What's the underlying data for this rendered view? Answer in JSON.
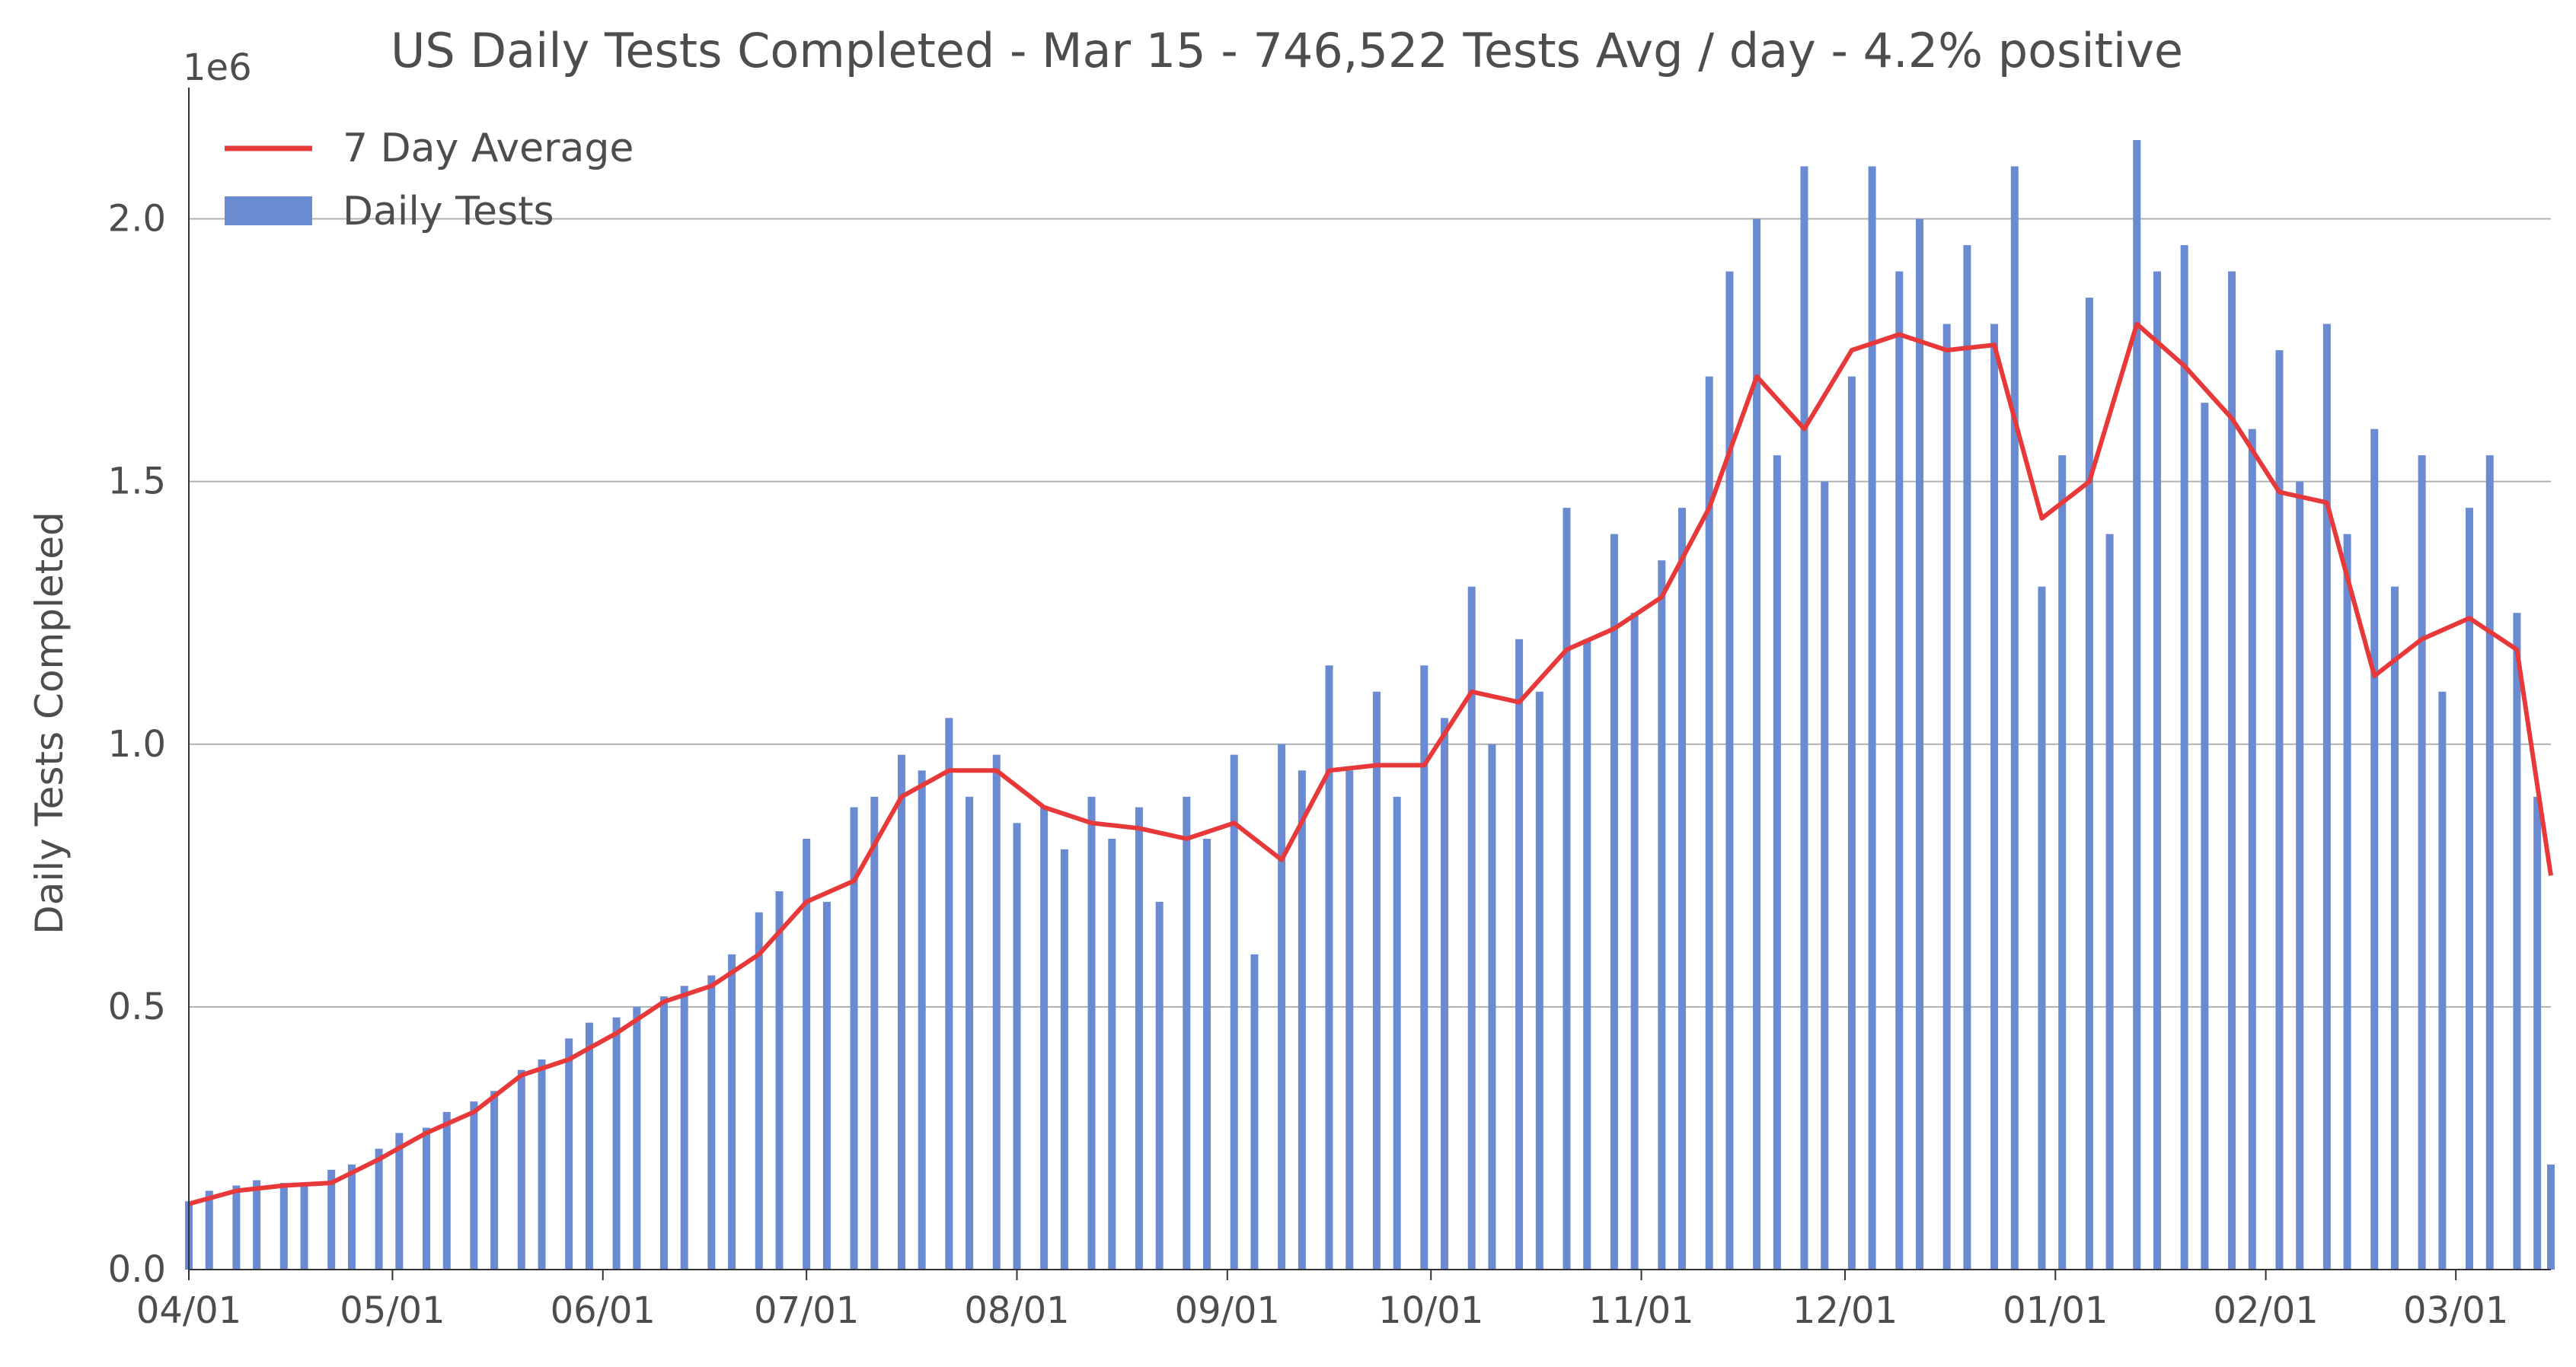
{
  "chart_data": {
    "type": "bar",
    "title": "US Daily Tests Completed - Mar 15 - 746,522 Tests Avg / day - 4.2% positive",
    "ylabel": "Daily Tests Completed",
    "xlabel": "",
    "offset_label": "1e6",
    "x_start": "2020-04-01",
    "x_end": "2021-03-15",
    "ylim": [
      0,
      2250000
    ],
    "yticks": [
      0,
      500000,
      1000000,
      1500000,
      2000000
    ],
    "ytick_labels": [
      "0.0",
      "0.5",
      "1.0",
      "1.5",
      "2.0"
    ],
    "xticks": [
      "2020-04-01",
      "2020-05-01",
      "2020-06-01",
      "2020-07-01",
      "2020-08-01",
      "2020-09-01",
      "2020-10-01",
      "2020-11-01",
      "2020-12-01",
      "2021-01-01",
      "2021-02-01",
      "2021-03-01"
    ],
    "xtick_labels": [
      "04/01",
      "05/01",
      "06/01",
      "07/01",
      "08/01",
      "09/01",
      "10/01",
      "11/01",
      "12/01",
      "01/01",
      "02/01",
      "03/01"
    ],
    "grid": "horizontal",
    "legend_position": "top-left",
    "series": [
      {
        "name": "Daily Tests",
        "kind": "bar",
        "color": "#6a8bd1",
        "dates": [
          "2020-04-01",
          "2020-04-04",
          "2020-04-08",
          "2020-04-11",
          "2020-04-15",
          "2020-04-18",
          "2020-04-22",
          "2020-04-25",
          "2020-04-29",
          "2020-05-02",
          "2020-05-06",
          "2020-05-09",
          "2020-05-13",
          "2020-05-16",
          "2020-05-20",
          "2020-05-23",
          "2020-05-27",
          "2020-05-30",
          "2020-06-03",
          "2020-06-06",
          "2020-06-10",
          "2020-06-13",
          "2020-06-17",
          "2020-06-20",
          "2020-06-24",
          "2020-06-27",
          "2020-07-01",
          "2020-07-04",
          "2020-07-08",
          "2020-07-11",
          "2020-07-15",
          "2020-07-18",
          "2020-07-22",
          "2020-07-25",
          "2020-07-29",
          "2020-08-01",
          "2020-08-05",
          "2020-08-08",
          "2020-08-12",
          "2020-08-15",
          "2020-08-19",
          "2020-08-22",
          "2020-08-26",
          "2020-08-29",
          "2020-09-02",
          "2020-09-05",
          "2020-09-09",
          "2020-09-12",
          "2020-09-16",
          "2020-09-19",
          "2020-09-23",
          "2020-09-26",
          "2020-09-30",
          "2020-10-03",
          "2020-10-07",
          "2020-10-10",
          "2020-10-14",
          "2020-10-17",
          "2020-10-21",
          "2020-10-24",
          "2020-10-28",
          "2020-10-31",
          "2020-11-04",
          "2020-11-07",
          "2020-11-11",
          "2020-11-14",
          "2020-11-18",
          "2020-11-21",
          "2020-11-25",
          "2020-11-28",
          "2020-12-02",
          "2020-12-05",
          "2020-12-09",
          "2020-12-12",
          "2020-12-16",
          "2020-12-19",
          "2020-12-23",
          "2020-12-26",
          "2020-12-30",
          "2021-01-02",
          "2021-01-06",
          "2021-01-09",
          "2021-01-13",
          "2021-01-16",
          "2021-01-20",
          "2021-01-23",
          "2021-01-27",
          "2021-01-30",
          "2021-02-03",
          "2021-02-06",
          "2021-02-10",
          "2021-02-13",
          "2021-02-17",
          "2021-02-20",
          "2021-02-24",
          "2021-02-27",
          "2021-03-03",
          "2021-03-06",
          "2021-03-10",
          "2021-03-13",
          "2021-03-15"
        ],
        "values": [
          130000,
          150000,
          160000,
          170000,
          165000,
          160000,
          190000,
          200000,
          230000,
          260000,
          270000,
          300000,
          320000,
          340000,
          380000,
          400000,
          440000,
          470000,
          480000,
          500000,
          520000,
          540000,
          560000,
          600000,
          680000,
          720000,
          820000,
          700000,
          880000,
          900000,
          980000,
          950000,
          1050000,
          900000,
          980000,
          850000,
          880000,
          800000,
          900000,
          820000,
          880000,
          700000,
          900000,
          820000,
          980000,
          600000,
          1000000,
          950000,
          1150000,
          950000,
          1100000,
          900000,
          1150000,
          1050000,
          1300000,
          1000000,
          1200000,
          1100000,
          1450000,
          1200000,
          1400000,
          1250000,
          1350000,
          1450000,
          1700000,
          1900000,
          2000000,
          1550000,
          2100000,
          1500000,
          1700000,
          2100000,
          1900000,
          2000000,
          1800000,
          1950000,
          1800000,
          2100000,
          1300000,
          1550000,
          1850000,
          1400000,
          2150000,
          1900000,
          1950000,
          1650000,
          1900000,
          1600000,
          1750000,
          1500000,
          1800000,
          1400000,
          1600000,
          1300000,
          1550000,
          1100000,
          1450000,
          1550000,
          1250000,
          900000,
          200000
        ]
      },
      {
        "name": "7 Day Average",
        "kind": "line",
        "color": "#e8393a",
        "dates": [
          "2020-04-01",
          "2020-04-08",
          "2020-04-15",
          "2020-04-22",
          "2020-04-29",
          "2020-05-06",
          "2020-05-13",
          "2020-05-20",
          "2020-05-27",
          "2020-06-03",
          "2020-06-10",
          "2020-06-17",
          "2020-06-24",
          "2020-07-01",
          "2020-07-08",
          "2020-07-15",
          "2020-07-22",
          "2020-07-29",
          "2020-08-05",
          "2020-08-12",
          "2020-08-19",
          "2020-08-26",
          "2020-09-02",
          "2020-09-09",
          "2020-09-16",
          "2020-09-23",
          "2020-09-30",
          "2020-10-07",
          "2020-10-14",
          "2020-10-21",
          "2020-10-28",
          "2020-11-04",
          "2020-11-11",
          "2020-11-18",
          "2020-11-25",
          "2020-12-02",
          "2020-12-09",
          "2020-12-16",
          "2020-12-23",
          "2020-12-30",
          "2021-01-06",
          "2021-01-13",
          "2021-01-20",
          "2021-01-27",
          "2021-02-03",
          "2021-02-10",
          "2021-02-17",
          "2021-02-24",
          "2021-03-03",
          "2021-03-10",
          "2021-03-15"
        ],
        "values": [
          125000,
          150000,
          160000,
          165000,
          210000,
          260000,
          300000,
          370000,
          400000,
          450000,
          510000,
          540000,
          600000,
          700000,
          740000,
          900000,
          950000,
          950000,
          880000,
          850000,
          840000,
          820000,
          850000,
          780000,
          950000,
          960000,
          960000,
          1100000,
          1080000,
          1180000,
          1220000,
          1280000,
          1450000,
          1700000,
          1600000,
          1750000,
          1780000,
          1750000,
          1760000,
          1430000,
          1500000,
          1800000,
          1720000,
          1620000,
          1480000,
          1460000,
          1130000,
          1200000,
          1240000,
          1180000,
          750000
        ]
      }
    ]
  }
}
